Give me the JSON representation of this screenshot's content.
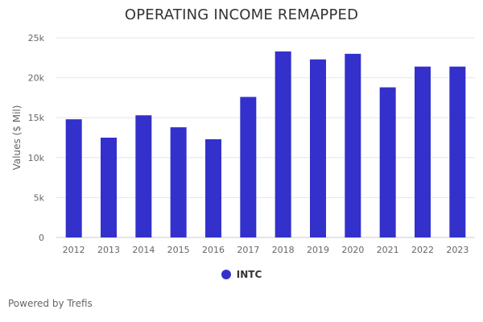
{
  "chart_data": {
    "type": "bar",
    "title": "OPERATING INCOME REMAPPED",
    "xlabel": "",
    "ylabel": "Values ($ Mil)",
    "categories": [
      "2012",
      "2013",
      "2014",
      "2015",
      "2016",
      "2017",
      "2018",
      "2019",
      "2020",
      "2021",
      "2022",
      "2023"
    ],
    "series": [
      {
        "name": "INTC",
        "color": "#3330cc",
        "values": [
          14800,
          12500,
          15300,
          13800,
          12300,
          17600,
          23300,
          22300,
          23000,
          18800,
          21400,
          21400
        ]
      }
    ],
    "ylim": [
      0,
      25000
    ],
    "yticks": [
      0,
      5000,
      10000,
      15000,
      20000,
      25000
    ],
    "ytick_labels": [
      "0",
      "5k",
      "10k",
      "15k",
      "20k",
      "25k"
    ],
    "grid": true,
    "legend_position": "bottom-center"
  },
  "credits": "Powered by Trefis"
}
